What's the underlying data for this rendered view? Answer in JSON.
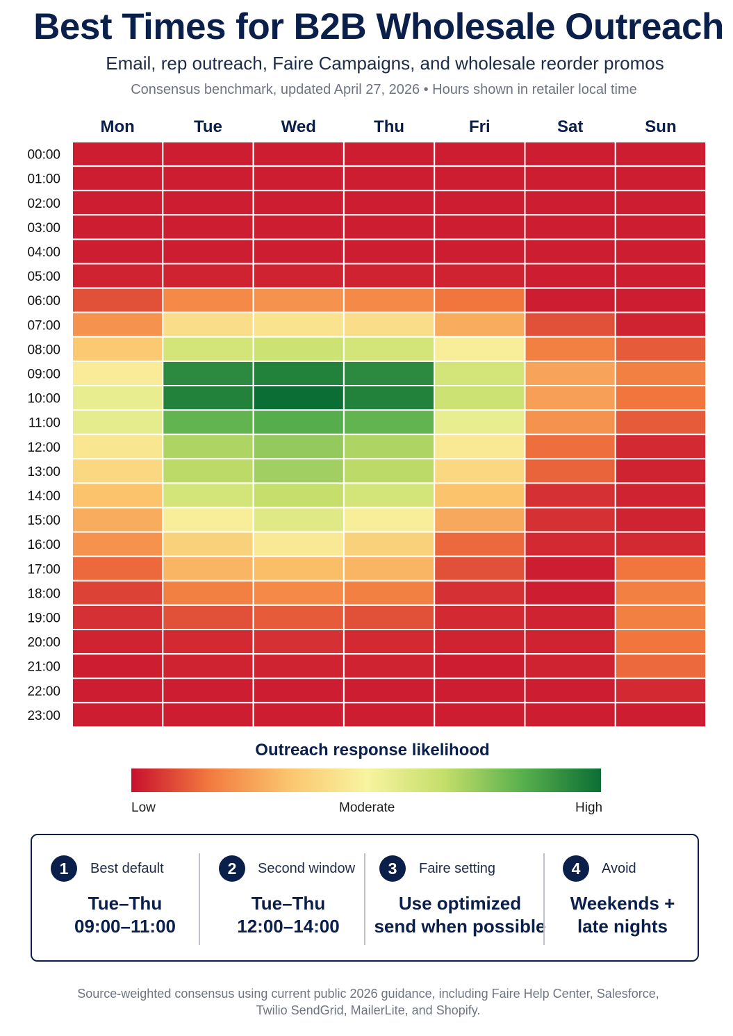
{
  "header": {
    "title": "Best Times for B2B Wholesale Outreach",
    "subtitle": "Email, rep outreach, Faire Campaigns, and wholesale reorder promos",
    "meta": "Consensus benchmark, updated April 27, 2026 • Hours shown in retailer local time"
  },
  "chart_data": {
    "type": "heatmap",
    "x_categories": [
      "Mon",
      "Tue",
      "Wed",
      "Thu",
      "Fri",
      "Sat",
      "Sun"
    ],
    "y_categories": [
      "00:00",
      "01:00",
      "02:00",
      "03:00",
      "04:00",
      "05:00",
      "06:00",
      "07:00",
      "08:00",
      "09:00",
      "10:00",
      "11:00",
      "12:00",
      "13:00",
      "14:00",
      "15:00",
      "16:00",
      "17:00",
      "18:00",
      "19:00",
      "20:00",
      "21:00",
      "22:00",
      "23:00"
    ],
    "value_scale": [
      0,
      1
    ],
    "values": [
      [
        0.02,
        0.02,
        0.02,
        0.02,
        0.02,
        0.02,
        0.02
      ],
      [
        0.02,
        0.02,
        0.02,
        0.02,
        0.02,
        0.02,
        0.02
      ],
      [
        0.02,
        0.02,
        0.02,
        0.02,
        0.02,
        0.02,
        0.02
      ],
      [
        0.02,
        0.02,
        0.02,
        0.02,
        0.02,
        0.02,
        0.02
      ],
      [
        0.02,
        0.02,
        0.02,
        0.02,
        0.02,
        0.02,
        0.02
      ],
      [
        0.03,
        0.03,
        0.03,
        0.03,
        0.03,
        0.02,
        0.02
      ],
      [
        0.1,
        0.2,
        0.22,
        0.2,
        0.16,
        0.02,
        0.02
      ],
      [
        0.22,
        0.42,
        0.44,
        0.42,
        0.28,
        0.1,
        0.03
      ],
      [
        0.35,
        0.62,
        0.64,
        0.62,
        0.48,
        0.18,
        0.12
      ],
      [
        0.47,
        0.93,
        0.95,
        0.93,
        0.62,
        0.26,
        0.18
      ],
      [
        0.55,
        0.95,
        1.0,
        0.95,
        0.64,
        0.25,
        0.16
      ],
      [
        0.56,
        0.82,
        0.84,
        0.82,
        0.55,
        0.22,
        0.12
      ],
      [
        0.45,
        0.7,
        0.74,
        0.7,
        0.46,
        0.15,
        0.04
      ],
      [
        0.4,
        0.68,
        0.72,
        0.68,
        0.4,
        0.13,
        0.03
      ],
      [
        0.33,
        0.62,
        0.66,
        0.62,
        0.33,
        0.05,
        0.03
      ],
      [
        0.28,
        0.48,
        0.58,
        0.48,
        0.27,
        0.05,
        0.03
      ],
      [
        0.22,
        0.38,
        0.46,
        0.38,
        0.14,
        0.04,
        0.04
      ],
      [
        0.14,
        0.3,
        0.32,
        0.3,
        0.1,
        0.02,
        0.16
      ],
      [
        0.08,
        0.18,
        0.2,
        0.18,
        0.05,
        0.02,
        0.18
      ],
      [
        0.05,
        0.1,
        0.12,
        0.1,
        0.04,
        0.03,
        0.18
      ],
      [
        0.03,
        0.04,
        0.05,
        0.04,
        0.03,
        0.03,
        0.16
      ],
      [
        0.02,
        0.03,
        0.03,
        0.03,
        0.02,
        0.03,
        0.14
      ],
      [
        0.02,
        0.02,
        0.02,
        0.02,
        0.02,
        0.02,
        0.04
      ],
      [
        0.02,
        0.02,
        0.02,
        0.02,
        0.02,
        0.02,
        0.02
      ]
    ],
    "colorscale": [
      "#c8102e",
      "#f27a3f",
      "#fbc46d",
      "#f8f4a0",
      "#c4de6a",
      "#58b04d",
      "#0b6e34"
    ],
    "legend": {
      "title": "Outreach response likelihood",
      "low": "Low",
      "mid": "Moderate",
      "high": "High"
    }
  },
  "summary": [
    {
      "num": "1",
      "label": "Best default",
      "line1": "Tue–Thu",
      "line2": "09:00–11:00"
    },
    {
      "num": "2",
      "label": "Second window",
      "line1": "Tue–Thu",
      "line2": "12:00–14:00"
    },
    {
      "num": "3",
      "label": "Faire setting",
      "line1": "Use optimized",
      "line2": "send when possible"
    },
    {
      "num": "4",
      "label": "Avoid",
      "line1": "Weekends +",
      "line2": "late nights"
    }
  ],
  "footnote": {
    "line1": "Source-weighted consensus using current public 2026 guidance, including Faire Help Center, Salesforce,",
    "line2": "Twilio SendGrid, MailerLite, and Shopify."
  }
}
